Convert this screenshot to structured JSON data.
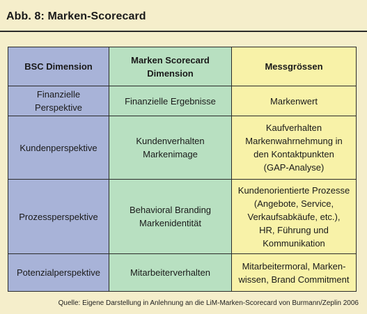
{
  "header": {
    "title": "Abb. 8: Marken-Scorecard"
  },
  "table": {
    "headers": [
      [
        "BSC Dimension"
      ],
      [
        "Marken Scorecard",
        "Dimension"
      ],
      [
        "Messgrössen"
      ]
    ],
    "rows": [
      [
        [
          "Finanzielle Perspektive"
        ],
        [
          "Finanzielle Ergebnisse"
        ],
        [
          "Markenwert"
        ]
      ],
      [
        [
          "Kundenperspektive"
        ],
        [
          "Kundenverhalten",
          "Markenimage"
        ],
        [
          "Kaufverhalten",
          "Markenwahrnehmung in",
          "den Kontaktpunkten",
          "(GAP-Analyse)"
        ]
      ],
      [
        [
          "Prozessperspektive"
        ],
        [
          "Behavioral Branding",
          "Markenidentität"
        ],
        [
          "Kundenorientierte Prozesse",
          "(Angebote, Service,",
          "Verkaufsabkäufe, etc.),",
          "HR, Führung und",
          "Kommunikation"
        ]
      ],
      [
        [
          "Potenzialperspektive"
        ],
        [
          "Mitarbeiterverhalten"
        ],
        [
          "Mitarbeitermoral, Marken-",
          "wissen, Brand Commitment"
        ]
      ]
    ]
  },
  "footer": {
    "source": "Quelle: Eigene Darstellung in Anlehnung an die LiM-Marken-Scorecard von Burmann/Zeplin 2006"
  },
  "colors": {
    "background": "#f5eecb",
    "column_1": "#a8b3d8",
    "column_2": "#b8e0c1",
    "column_3": "#f8f2a8"
  }
}
